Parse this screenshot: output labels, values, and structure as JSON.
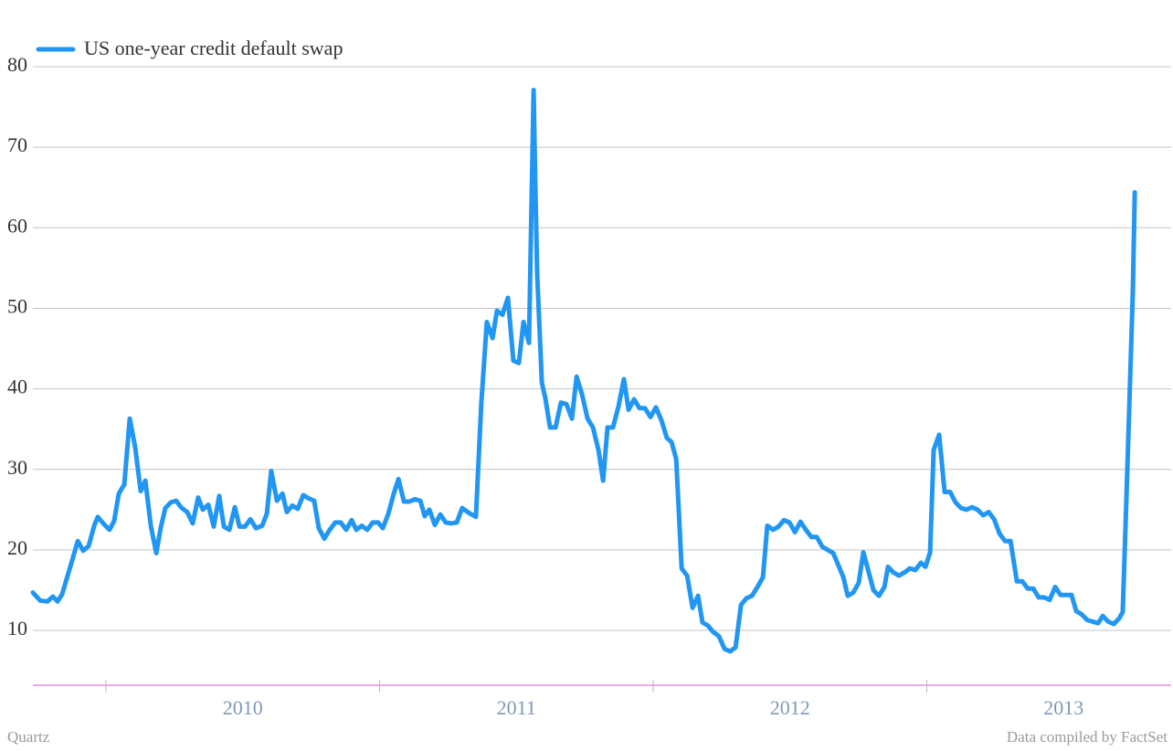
{
  "chart_data": {
    "type": "line",
    "legend": "top-left",
    "grid": true,
    "credit": "Quartz",
    "source": "Data compiled by FactSet",
    "xlim": [
      2009.733,
      2013.893
    ],
    "x_boundaries": [
      2010,
      2011,
      2012,
      2013
    ],
    "xticks": [
      {
        "value": 2010.5,
        "label": "2010"
      },
      {
        "value": 2011.5,
        "label": "2011"
      },
      {
        "value": 2012.5,
        "label": "2012"
      },
      {
        "value": 2013.5,
        "label": "2013"
      }
    ],
    "ylim": [
      3.2,
      80
    ],
    "yticks": [
      10,
      20,
      30,
      40,
      50,
      60,
      70,
      80
    ],
    "x": [
      2009.733,
      2009.76,
      2009.786,
      2009.806,
      2009.823,
      2009.84,
      2009.86,
      2009.88,
      2009.897,
      2009.917,
      2009.937,
      2009.957,
      2009.97,
      2009.99,
      2010.013,
      2010.03,
      2010.047,
      2010.067,
      2010.087,
      2010.107,
      2010.127,
      2010.144,
      2010.164,
      2010.184,
      2010.2,
      2010.217,
      2010.237,
      2010.257,
      2010.274,
      2010.297,
      2010.317,
      2010.337,
      2010.354,
      2010.374,
      2010.394,
      2010.414,
      2010.431,
      2010.451,
      2010.471,
      2010.488,
      2010.508,
      2010.528,
      2010.548,
      2010.571,
      2010.588,
      2010.604,
      2010.625,
      2010.645,
      2010.661,
      2010.681,
      2010.701,
      2010.721,
      2010.741,
      2010.761,
      2010.778,
      2010.798,
      2010.818,
      2010.838,
      2010.858,
      2010.878,
      2010.898,
      2010.915,
      2010.935,
      2010.955,
      2010.975,
      2010.995,
      2011.012,
      2011.032,
      2011.052,
      2011.069,
      2011.089,
      2011.109,
      2011.129,
      2011.149,
      2011.165,
      2011.182,
      2011.202,
      2011.222,
      2011.242,
      2011.262,
      2011.282,
      2011.302,
      2011.326,
      2011.352,
      2011.372,
      2011.392,
      2011.413,
      2011.429,
      2011.449,
      2011.469,
      2011.489,
      2011.509,
      2011.526,
      2011.546,
      2011.563,
      2011.569,
      2011.576,
      2011.593,
      2011.606,
      2011.623,
      2011.643,
      2011.663,
      2011.683,
      2011.703,
      2011.72,
      2011.74,
      2011.76,
      2011.78,
      2011.8,
      2011.817,
      2011.833,
      2011.853,
      2011.873,
      2011.893,
      2011.91,
      2011.93,
      2011.95,
      2011.97,
      2011.99,
      2012.01,
      2012.03,
      2012.05,
      2012.067,
      2012.084,
      2012.104,
      2012.124,
      2012.144,
      2012.164,
      2012.18,
      2012.2,
      2012.22,
      2012.24,
      2012.261,
      2012.281,
      2012.301,
      2012.321,
      2012.341,
      2012.361,
      2012.381,
      2012.401,
      2012.417,
      2012.438,
      2012.458,
      2012.478,
      2012.498,
      2012.518,
      2012.538,
      2012.558,
      2012.578,
      2012.598,
      2012.618,
      2012.638,
      2012.658,
      2012.678,
      2012.695,
      2012.711,
      2012.731,
      2012.751,
      2012.768,
      2012.788,
      2012.805,
      2012.825,
      2012.845,
      2012.858,
      2012.878,
      2012.898,
      2012.918,
      2012.938,
      2012.958,
      2012.978,
      2012.995,
      2013.012,
      2013.025,
      2013.045,
      2013.065,
      2013.085,
      2013.105,
      2013.125,
      2013.145,
      2013.165,
      2013.185,
      2013.206,
      2013.226,
      2013.246,
      2013.266,
      2013.286,
      2013.306,
      2013.329,
      2013.349,
      2013.369,
      2013.389,
      2013.409,
      2013.429,
      2013.449,
      2013.469,
      2013.489,
      2013.509,
      2013.529,
      2013.546,
      2013.566,
      2013.586,
      2013.606,
      2013.626,
      2013.643,
      2013.663,
      2013.683,
      2013.703,
      2013.716,
      2013.73,
      2013.743,
      2013.753,
      2013.76
    ],
    "series": [
      {
        "name": "US one-year credit default swap",
        "color": "#2196f3",
        "values": [
          14.7,
          13.7,
          13.6,
          14.2,
          13.6,
          14.5,
          16.8,
          19.1,
          21.1,
          19.9,
          20.5,
          23.0,
          24.1,
          23.3,
          22.5,
          23.6,
          27.0,
          28.1,
          36.3,
          32.7,
          27.3,
          28.6,
          23.0,
          19.6,
          22.7,
          25.2,
          25.9,
          26.1,
          25.3,
          24.7,
          23.3,
          26.5,
          25.0,
          25.6,
          22.9,
          26.7,
          22.9,
          22.5,
          25.3,
          22.9,
          22.9,
          23.8,
          22.7,
          23.0,
          24.5,
          29.8,
          26.1,
          27.0,
          24.7,
          25.5,
          25.1,
          26.8,
          26.4,
          26.1,
          22.7,
          21.4,
          22.5,
          23.4,
          23.4,
          22.5,
          23.7,
          22.5,
          23.0,
          22.5,
          23.4,
          23.4,
          22.7,
          24.5,
          27.0,
          28.8,
          26.0,
          26.0,
          26.3,
          26.1,
          24.2,
          25.0,
          23.1,
          24.4,
          23.4,
          23.3,
          23.4,
          25.2,
          24.6,
          24.1,
          38.3,
          48.3,
          46.3,
          49.7,
          49.2,
          51.3,
          43.5,
          43.2,
          48.3,
          45.7,
          77.1,
          65.6,
          54.2,
          40.8,
          38.8,
          35.2,
          35.2,
          38.3,
          38.1,
          36.3,
          41.5,
          39.3,
          36.3,
          35.2,
          32.4,
          28.6,
          35.2,
          35.2,
          37.8,
          41.2,
          37.4,
          38.7,
          37.6,
          37.6,
          36.5,
          37.7,
          36.1,
          33.9,
          33.4,
          31.3,
          17.7,
          16.8,
          12.8,
          14.3,
          11.0,
          10.6,
          9.8,
          9.3,
          7.7,
          7.4,
          7.9,
          13.2,
          14.0,
          14.3,
          15.4,
          16.6,
          23.0,
          22.5,
          22.9,
          23.7,
          23.4,
          22.2,
          23.5,
          22.5,
          21.6,
          21.6,
          20.4,
          20.0,
          19.6,
          18.0,
          16.6,
          14.3,
          14.7,
          15.9,
          19.7,
          17.2,
          15.0,
          14.3,
          15.4,
          17.9,
          17.2,
          16.8,
          17.2,
          17.7,
          17.5,
          18.4,
          17.9,
          19.7,
          32.4,
          34.3,
          27.2,
          27.2,
          25.9,
          25.2,
          25.0,
          25.3,
          25.0,
          24.3,
          24.7,
          23.8,
          22.0,
          21.1,
          21.1,
          16.1,
          16.1,
          15.2,
          15.2,
          14.1,
          14.1,
          13.8,
          15.4,
          14.4,
          14.4,
          14.4,
          12.4,
          12.0,
          11.3,
          11.1,
          10.9,
          11.8,
          11.1,
          10.8,
          11.5,
          12.3,
          27.0,
          41.2,
          52.2,
          64.4
        ]
      }
    ]
  }
}
